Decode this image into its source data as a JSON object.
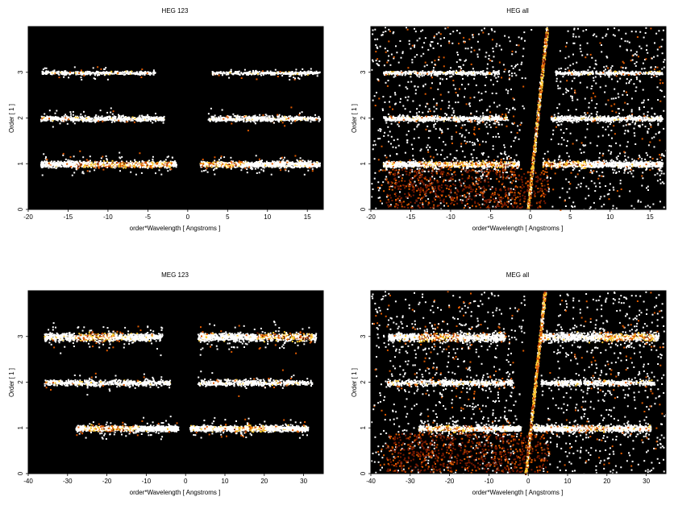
{
  "chart_data": [
    {
      "type": "heatmap",
      "title": "HEG 123",
      "xlabel": "order*Wavelength [ Angstroms ]",
      "ylabel": "Order [ 1 ]",
      "xlim": [
        -20,
        17
      ],
      "ylim": [
        0,
        4
      ],
      "xticks": [
        -20,
        -15,
        -10,
        -5,
        0,
        5,
        10,
        15
      ],
      "yticks": [
        0,
        1,
        2,
        3
      ],
      "colormap": [
        "#000000",
        "#7a1a00",
        "#e05a00",
        "#ffcc33",
        "#ffffff"
      ],
      "bands": [
        {
          "order": 1,
          "x_ranges": [
            [
              -18.5,
              -1.5
            ],
            [
              1.5,
              16.5
            ]
          ],
          "core": [
            [
              -14,
              -2
            ],
            [
              1.5,
              7
            ]
          ],
          "width": 0.09,
          "density": 0.95
        },
        {
          "order": 2,
          "x_ranges": [
            [
              -18.5,
              -3
            ],
            [
              2.5,
              16.5
            ]
          ],
          "core": [],
          "width": 0.08,
          "density": 0.55
        },
        {
          "order": 3,
          "x_ranges": [
            [
              -18.5,
              -4
            ],
            [
              3,
              16.5
            ]
          ],
          "core": [],
          "width": 0.06,
          "density": 0.35
        }
      ],
      "zero_order": false
    },
    {
      "type": "heatmap",
      "title": "HEG all",
      "xlabel": "order*Wavelength [ Angstroms ]",
      "ylabel": "Order [ 1 ]",
      "xlim": [
        -20,
        17
      ],
      "ylim": [
        0,
        4
      ],
      "xticks": [
        -20,
        -15,
        -10,
        -5,
        0,
        5,
        10,
        15
      ],
      "yticks": [
        0,
        1,
        2,
        3
      ],
      "colormap": [
        "#000000",
        "#7a1a00",
        "#e05a00",
        "#ffcc33",
        "#ffffff"
      ],
      "bands": [
        {
          "order": 1,
          "x_ranges": [
            [
              -18.5,
              -1.5
            ],
            [
              1.5,
              16.5
            ]
          ],
          "core": [
            [
              -14,
              -2
            ],
            [
              1.5,
              7
            ]
          ],
          "width": 0.09,
          "density": 0.95
        },
        {
          "order": 2,
          "x_ranges": [
            [
              -18.5,
              -3
            ],
            [
              2.5,
              16.5
            ]
          ],
          "core": [],
          "width": 0.08,
          "density": 0.55
        },
        {
          "order": 3,
          "x_ranges": [
            [
              -18.5,
              -4
            ],
            [
              3,
              16.5
            ]
          ],
          "core": [],
          "width": 0.06,
          "density": 0.35
        }
      ],
      "zero_order": true
    },
    {
      "type": "heatmap",
      "title": "MEG 123",
      "xlabel": "order*Wavelength [ Angstroms ]",
      "ylabel": "Order [ 1 ]",
      "xlim": [
        -40,
        35
      ],
      "ylim": [
        0,
        4
      ],
      "xticks": [
        -40,
        -30,
        -20,
        -10,
        0,
        10,
        20,
        30
      ],
      "yticks": [
        0,
        1,
        2,
        3
      ],
      "colormap": [
        "#000000",
        "#7a1a00",
        "#e05a00",
        "#ffcc33",
        "#ffffff"
      ],
      "bands": [
        {
          "order": 1,
          "x_ranges": [
            [
              -28,
              -2
            ],
            [
              1,
              31
            ]
          ],
          "core": [
            [
              -26,
              -14
            ],
            [
              12,
              20
            ]
          ],
          "width": 0.09,
          "density": 0.95
        },
        {
          "order": 2,
          "x_ranges": [
            [
              -36,
              -4
            ],
            [
              3,
              32
            ]
          ],
          "core": [],
          "width": 0.09,
          "density": 0.5
        },
        {
          "order": 3,
          "x_ranges": [
            [
              -36,
              -6
            ],
            [
              3,
              33
            ]
          ],
          "core": [
            [
              -28,
              -18
            ],
            [
              18,
              32
            ]
          ],
          "width": 0.13,
          "density": 0.85
        }
      ],
      "zero_order": false
    },
    {
      "type": "heatmap",
      "title": "MEG all",
      "xlabel": "order*Wavelength [ Angstroms ]",
      "ylabel": "Order [ 1 ]",
      "xlim": [
        -40,
        35
      ],
      "ylim": [
        0,
        4
      ],
      "xticks": [
        -40,
        -30,
        -20,
        -10,
        0,
        10,
        20,
        30
      ],
      "yticks": [
        0,
        1,
        2,
        3
      ],
      "colormap": [
        "#000000",
        "#7a1a00",
        "#e05a00",
        "#ffcc33",
        "#ffffff"
      ],
      "bands": [
        {
          "order": 1,
          "x_ranges": [
            [
              -28,
              -2
            ],
            [
              1,
              31
            ]
          ],
          "core": [
            [
              -26,
              -14
            ],
            [
              12,
              20
            ]
          ],
          "width": 0.09,
          "density": 0.95
        },
        {
          "order": 2,
          "x_ranges": [
            [
              -36,
              -4
            ],
            [
              3,
              32
            ]
          ],
          "core": [],
          "width": 0.09,
          "density": 0.5
        },
        {
          "order": 3,
          "x_ranges": [
            [
              -36,
              -6
            ],
            [
              3,
              33
            ]
          ],
          "core": [
            [
              -28,
              -18
            ],
            [
              18,
              32
            ]
          ],
          "width": 0.13,
          "density": 0.85
        }
      ],
      "zero_order": true
    }
  ]
}
